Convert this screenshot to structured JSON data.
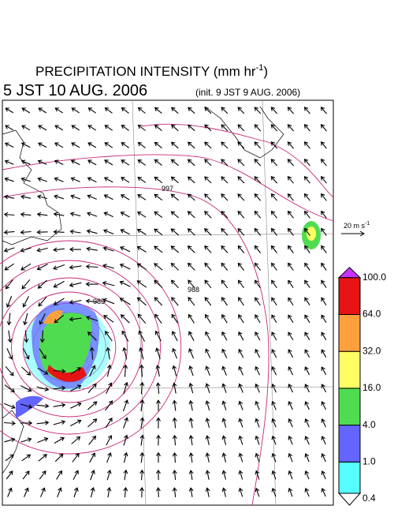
{
  "header": {
    "title": "PRECIPITATION INTENSITY (mm hr",
    "title_exponent": "-1",
    "title_close": ")",
    "valid_time": "5 JST 10 AUG. 2006",
    "init_time": "(init. 9 JST 9 AUG. 2006)"
  },
  "wind_scale": {
    "label": "20 m s",
    "exponent": "-1"
  },
  "colorbar": {
    "levels": [
      0.4,
      {
        "value": 1.0,
        "label": "1.0"
      },
      {
        "value": 4.0,
        "label": "4.0"
      },
      {
        "value": 16.0,
        "label": "16.0"
      },
      {
        "value": 32.0,
        "label": "32.0"
      },
      {
        "value": 64.0,
        "label": "64.0"
      },
      {
        "value": 100.0,
        "label": "100.0"
      }
    ],
    "colors": [
      "#ffffff",
      "#55ffff",
      "#6464ff",
      "#50dc50",
      "#ffff64",
      "#ffa03c",
      "#e61414",
      "#c832ff"
    ]
  },
  "contour_labels": [
    "997",
    "985",
    "988"
  ]
}
